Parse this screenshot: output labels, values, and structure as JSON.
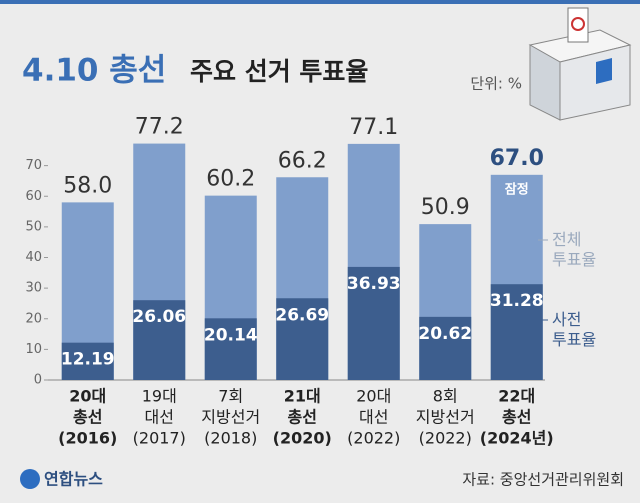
{
  "chart_data": {
    "type": "overlap_bar",
    "title": "4.10 총선",
    "subtitle": "주요 선거 투표율",
    "unit": "단위: %",
    "source": "자료: 중앙선거관리위원회",
    "logo": "연합뉴스",
    "annotation": "잠정",
    "categories": [
      [
        "20대",
        "총선",
        "(2016)"
      ],
      [
        "19대",
        "대선",
        "(2017)"
      ],
      [
        "7회",
        "지방선거",
        "(2018)"
      ],
      [
        "21대",
        "총선",
        "(2020)"
      ],
      [
        "20대",
        "대선",
        "(2022)"
      ],
      [
        "8회",
        "지방선거",
        "(2022)"
      ],
      [
        "22대",
        "총선",
        "(2024년)"
      ]
    ],
    "bold_categories": [
      0,
      3,
      6
    ],
    "series": [
      {
        "name": "전체 투표율",
        "color": "#809fcc",
        "values": [
          58,
          77.2,
          60.2,
          66.2,
          77.1,
          50.9,
          67
        ],
        "value_labels": [
          "58.0",
          "77.2",
          "60.2",
          "66.2",
          "77.1",
          "50.9",
          "67.0"
        ]
      },
      {
        "name": "사전 투표율",
        "color": "#3d5e8e",
        "values": [
          12.19,
          26.06,
          20.14,
          26.69,
          36.93,
          20.62,
          31.28
        ]
      }
    ],
    "ylim": [
      0,
      80
    ],
    "yticks": [
      0,
      10,
      20,
      30,
      40,
      50,
      60,
      70
    ]
  }
}
